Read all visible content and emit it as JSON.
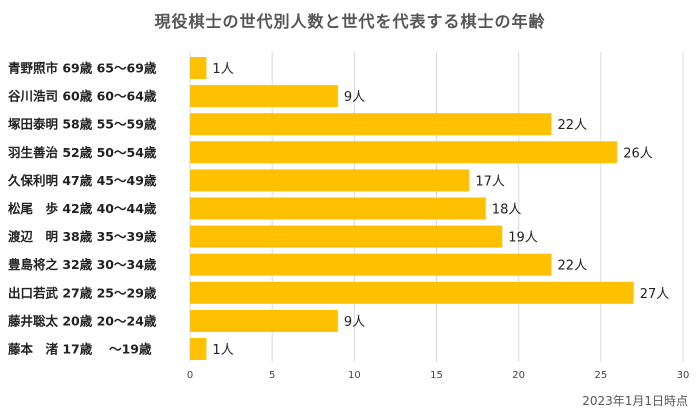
{
  "chart_data": {
    "type": "bar",
    "orientation": "horizontal",
    "title": "現役棋士の世代別人数と世代を代表する棋士の年齢",
    "categories": [
      "青野照市 69歳 65～69歳",
      "谷川浩司 60歳 60～64歳",
      "塚田泰明 58歳 55～59歳",
      "羽生善治 52歳 50～54歳",
      "久保利明 47歳 45～49歳",
      "松尾　歩 42歳 40～44歳",
      "渡辺　明 38歳 35～39歳",
      "豊島将之 32歳 30～34歳",
      "出口若武 27歳 25～29歳",
      "藤井聡太 20歳 20～24歳",
      "藤本　渚 17歳 　～19歳"
    ],
    "values": [
      1,
      9,
      22,
      26,
      17,
      18,
      19,
      22,
      27,
      9,
      1
    ],
    "data_labels": [
      "1人",
      "9人",
      "22人",
      "26人",
      "17人",
      "18人",
      "19人",
      "22人",
      "27人",
      "9人",
      "1人"
    ],
    "xlim": [
      0,
      30
    ],
    "xticks": [
      "0",
      "5",
      "10",
      "15",
      "20",
      "25",
      "30"
    ],
    "grid": true,
    "bar_color": "#FFC000",
    "note": "2023年1月1日時点"
  }
}
